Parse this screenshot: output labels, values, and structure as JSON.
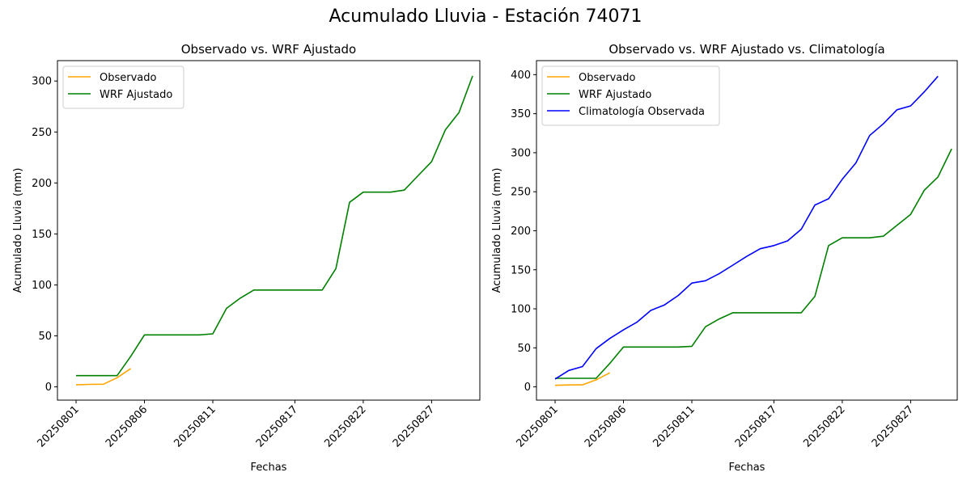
{
  "suptitle": "Acumulado Lluvia - Estación 74071",
  "x_dates": [
    "20250801",
    "20250802",
    "20250803",
    "20250804",
    "20250805",
    "20250806",
    "20250807",
    "20250808",
    "20250809",
    "20250810",
    "20250811",
    "20250812",
    "20250813",
    "20250814",
    "20250815",
    "20250816",
    "20250817",
    "20250818",
    "20250819",
    "20250820",
    "20250821",
    "20250822",
    "20250823",
    "20250824",
    "20250825",
    "20250826",
    "20250827",
    "20250828",
    "20250829",
    "20250830"
  ],
  "chart_data": [
    {
      "type": "line",
      "title": "Observado vs. WRF Ajustado",
      "xlabel": "Fechas",
      "ylabel": "Acumulado Lluvia (mm)",
      "ylim": [
        -13,
        320
      ],
      "yticks": [
        0,
        50,
        100,
        150,
        200,
        250,
        300
      ],
      "xticks": [
        "20250801",
        "20250806",
        "20250811",
        "20250817",
        "20250822",
        "20250827"
      ],
      "legend": "top-left",
      "grid": false,
      "series": [
        {
          "name": "Observado",
          "color": "#ffa500",
          "values": [
            2,
            2.5,
            2.6,
            9,
            18
          ]
        },
        {
          "name": "WRF Ajustado",
          "color": "#008000",
          "values": [
            11,
            11,
            11,
            11,
            30,
            51,
            51,
            51,
            51,
            51,
            52,
            77,
            87,
            95,
            95,
            95,
            95,
            95,
            95,
            116,
            181,
            191,
            191,
            191,
            193,
            207,
            221,
            252,
            269,
            305
          ]
        }
      ]
    },
    {
      "type": "line",
      "title": "Observado vs. WRF Ajustado vs. Climatología",
      "xlabel": "Fechas",
      "ylabel": "Acumulado Lluvia (mm)",
      "ylim": [
        -17,
        418
      ],
      "yticks": [
        0,
        50,
        100,
        150,
        200,
        250,
        300,
        350,
        400
      ],
      "xticks": [
        "20250801",
        "20250806",
        "20250811",
        "20250817",
        "20250822",
        "20250827"
      ],
      "legend": "top-left",
      "grid": false,
      "series": [
        {
          "name": "Observado",
          "color": "#ffa500",
          "values": [
            2,
            2.5,
            2.6,
            9,
            18
          ]
        },
        {
          "name": "WRF Ajustado",
          "color": "#008000",
          "values": [
            11,
            11,
            11,
            11,
            30,
            51,
            51,
            51,
            51,
            51,
            52,
            77,
            87,
            95,
            95,
            95,
            95,
            95,
            95,
            116,
            181,
            191,
            191,
            191,
            193,
            207,
            221,
            252,
            269,
            305
          ]
        },
        {
          "name": "Climatología Observada",
          "color": "#0000ff",
          "values": [
            10,
            21,
            26,
            49,
            62,
            73,
            83,
            98,
            105,
            117,
            133,
            136,
            145,
            156,
            167,
            177,
            181,
            187,
            202,
            233,
            241,
            266,
            287,
            322,
            337,
            355,
            360,
            378,
            398
          ]
        }
      ]
    }
  ]
}
